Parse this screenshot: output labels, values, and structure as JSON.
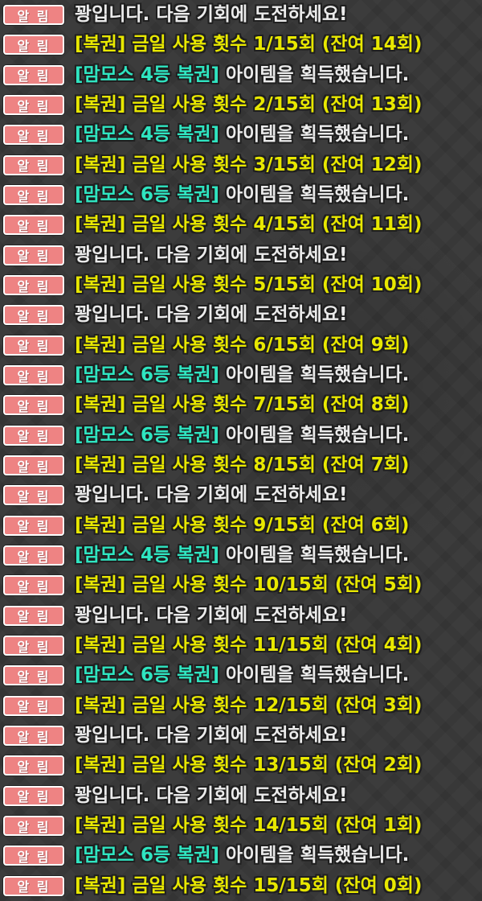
{
  "notifications": {
    "badge_label": "알 림",
    "colors": {
      "background": "#3c3c3c",
      "badge_bg": "#ee8383",
      "badge_border": "#ffffff",
      "miss_text": "#ebebeb",
      "usage_text": "#e8e800",
      "win_prefix_text": "#2fe5c1",
      "outline": "#1f1f1f"
    },
    "rows": [
      {
        "type": "miss",
        "text": "꽝입니다. 다음 기회에 도전하세요!"
      },
      {
        "type": "usage",
        "text": "[복권] 금일 사용 횟수 1/15회 (잔여 14회)"
      },
      {
        "type": "win",
        "prefix": "[맘모스 4등 복권]",
        "text": " 아이템을 획득했습니다."
      },
      {
        "type": "usage",
        "text": "[복권] 금일 사용 횟수 2/15회 (잔여 13회)"
      },
      {
        "type": "win",
        "prefix": "[맘모스 4등 복권]",
        "text": " 아이템을 획득했습니다."
      },
      {
        "type": "usage",
        "text": "[복권] 금일 사용 횟수 3/15회 (잔여 12회)"
      },
      {
        "type": "win",
        "prefix": "[맘모스 6등 복권]",
        "text": " 아이템을 획득했습니다."
      },
      {
        "type": "usage",
        "text": "[복권] 금일 사용 횟수 4/15회 (잔여 11회)"
      },
      {
        "type": "miss",
        "text": "꽝입니다. 다음 기회에 도전하세요!"
      },
      {
        "type": "usage",
        "text": "[복권] 금일 사용 횟수 5/15회 (잔여 10회)"
      },
      {
        "type": "miss",
        "text": "꽝입니다. 다음 기회에 도전하세요!"
      },
      {
        "type": "usage",
        "text": "[복권] 금일 사용 횟수 6/15회 (잔여 9회)"
      },
      {
        "type": "win",
        "prefix": "[맘모스 6등 복권]",
        "text": " 아이템을 획득했습니다."
      },
      {
        "type": "usage",
        "text": "[복권] 금일 사용 횟수 7/15회 (잔여 8회)"
      },
      {
        "type": "win",
        "prefix": "[맘모스 6등 복권]",
        "text": " 아이템을 획득했습니다."
      },
      {
        "type": "usage",
        "text": "[복권] 금일 사용 횟수 8/15회 (잔여 7회)"
      },
      {
        "type": "miss",
        "text": "꽝입니다. 다음 기회에 도전하세요!"
      },
      {
        "type": "usage",
        "text": "[복권] 금일 사용 횟수 9/15회 (잔여 6회)"
      },
      {
        "type": "win",
        "prefix": "[맘모스 4등 복권]",
        "text": " 아이템을 획득했습니다."
      },
      {
        "type": "usage",
        "text": "[복권] 금일 사용 횟수 10/15회 (잔여 5회)"
      },
      {
        "type": "miss",
        "text": "꽝입니다. 다음 기회에 도전하세요!"
      },
      {
        "type": "usage",
        "text": "[복권] 금일 사용 횟수 11/15회 (잔여 4회)"
      },
      {
        "type": "win",
        "prefix": "[맘모스 6등 복권]",
        "text": " 아이템을 획득했습니다."
      },
      {
        "type": "usage",
        "text": "[복권] 금일 사용 횟수 12/15회 (잔여 3회)"
      },
      {
        "type": "miss",
        "text": "꽝입니다. 다음 기회에 도전하세요!"
      },
      {
        "type": "usage",
        "text": "[복권] 금일 사용 횟수 13/15회 (잔여 2회)"
      },
      {
        "type": "miss",
        "text": "꽝입니다. 다음 기회에 도전하세요!"
      },
      {
        "type": "usage",
        "text": "[복권] 금일 사용 횟수 14/15회 (잔여 1회)"
      },
      {
        "type": "win",
        "prefix": "[맘모스 6등 복권]",
        "text": " 아이템을 획득했습니다."
      },
      {
        "type": "usage",
        "text": "[복권] 금일 사용 횟수 15/15회 (잔여 0회)"
      }
    ]
  }
}
